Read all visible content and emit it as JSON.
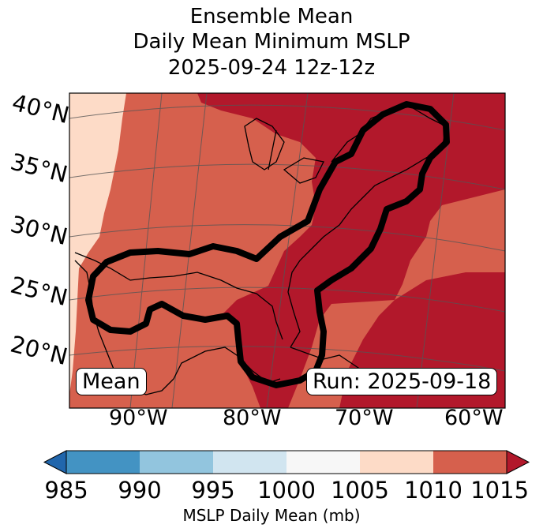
{
  "title": {
    "line1": "Ensemble Mean",
    "line2": "Daily Mean Minimum MSLP",
    "line3": "2025-09-24 12z-12z"
  },
  "map": {
    "lat_labels": [
      "40°N",
      "35°N",
      "30°N",
      "25°N",
      "20°N"
    ],
    "lon_labels": [
      "90°W",
      "80°W",
      "70°W",
      "60°W"
    ],
    "mean_box": "Mean",
    "run_box": "Run: 2025-09-18",
    "colors": {
      "above_1010": "#b2182b",
      "1005_1010": "#d6604d",
      "1000_1005": "#fddbc7",
      "coast": "#000000",
      "contour": "#000000"
    }
  },
  "colorbar": {
    "ticks": [
      "985",
      "990",
      "995",
      "1000",
      "1005",
      "1010",
      "1015"
    ],
    "label": "MSLP Daily Mean (mb)",
    "colors": [
      "#2166ac",
      "#4393c3",
      "#92c5de",
      "#d1e5f0",
      "#f7f7f7",
      "#fddbc7",
      "#d6604d",
      "#b2182b"
    ]
  }
}
